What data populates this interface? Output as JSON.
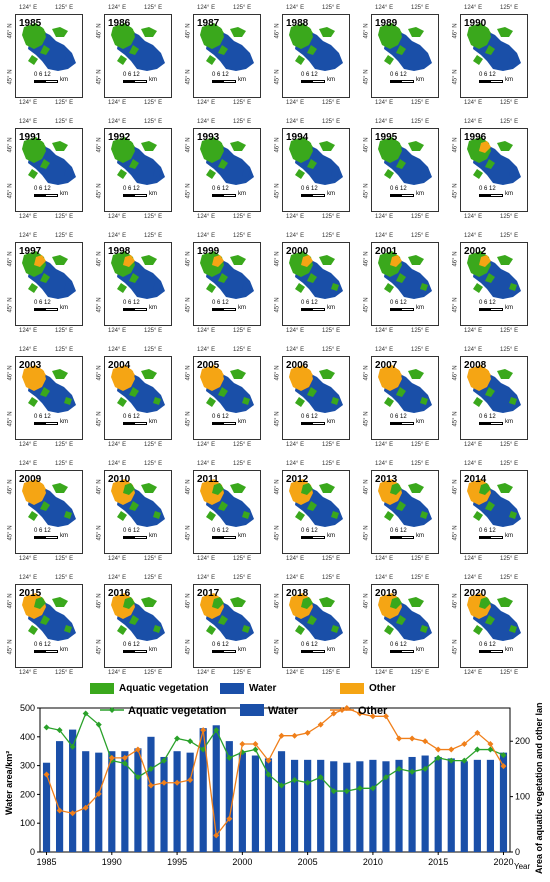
{
  "maps": {
    "lon_labels": [
      "124° E",
      "125° E"
    ],
    "lat_labels": [
      "46° N",
      "45° N"
    ],
    "scale_numbers": "0   6   12",
    "scale_unit": "km",
    "years": [
      "1985",
      "1986",
      "1987",
      "1988",
      "1989",
      "1990",
      "1991",
      "1992",
      "1993",
      "1994",
      "1995",
      "1996",
      "1997",
      "1998",
      "1999",
      "2000",
      "2001",
      "2002",
      "2003",
      "2004",
      "2005",
      "2006",
      "2007",
      "2008",
      "2009",
      "2010",
      "2011",
      "2012",
      "2013",
      "2014",
      "2015",
      "2016",
      "2017",
      "2018",
      "2019",
      "2020"
    ]
  },
  "legend": {
    "items": [
      {
        "label": "Aquatic vegetation",
        "color": "#3aa81c"
      },
      {
        "label": "Water",
        "color": "#1a4fa8"
      },
      {
        "label": "Other",
        "color": "#f5a514"
      }
    ]
  },
  "chart_data": {
    "type": "bar+line",
    "x": [
      1985,
      1986,
      1987,
      1988,
      1989,
      1990,
      1991,
      1992,
      1993,
      1994,
      1995,
      1996,
      1997,
      1998,
      1999,
      2000,
      2001,
      2002,
      2003,
      2004,
      2005,
      2006,
      2007,
      2008,
      2009,
      2010,
      2011,
      2012,
      2013,
      2014,
      2015,
      2016,
      2017,
      2018,
      2019,
      2020
    ],
    "xticks": [
      1985,
      1990,
      1995,
      2000,
      2005,
      2010,
      2015,
      2020
    ],
    "xlabel": "Year",
    "ylabel_left": "Water area/km²",
    "ylabel_right": "Area of aquatic vegetation and other land/km²",
    "ylim_left": [
      0,
      500
    ],
    "yticks_left": [
      0,
      100,
      200,
      300,
      400,
      500
    ],
    "ylim_right": [
      0,
      260
    ],
    "yticks_right": [
      0,
      100,
      200
    ],
    "series": [
      {
        "name": "Water",
        "axis": "left",
        "type": "bar",
        "color": "#1a4fa8",
        "values": [
          310,
          385,
          425,
          350,
          345,
          350,
          350,
          360,
          400,
          330,
          350,
          345,
          430,
          440,
          385,
          345,
          335,
          325,
          350,
          320,
          320,
          320,
          315,
          310,
          315,
          320,
          315,
          320,
          330,
          335,
          330,
          325,
          315,
          320,
          320,
          345
        ]
      },
      {
        "name": "Aquatic vegetation",
        "axis": "right",
        "type": "line",
        "color": "#2aa12a",
        "values": [
          225,
          220,
          190,
          250,
          230,
          165,
          160,
          135,
          150,
          165,
          205,
          200,
          185,
          220,
          170,
          180,
          185,
          140,
          120,
          130,
          125,
          135,
          110,
          110,
          115,
          115,
          135,
          150,
          145,
          150,
          170,
          165,
          165,
          185,
          185,
          175
        ]
      },
      {
        "name": "Other",
        "axis": "right",
        "type": "line",
        "color": "#f07f1a",
        "values": [
          140,
          75,
          70,
          80,
          105,
          170,
          170,
          185,
          120,
          125,
          125,
          130,
          220,
          30,
          60,
          195,
          195,
          165,
          210,
          210,
          215,
          230,
          250,
          260,
          250,
          245,
          245,
          205,
          205,
          200,
          185,
          185,
          195,
          215,
          195,
          155
        ]
      }
    ]
  }
}
